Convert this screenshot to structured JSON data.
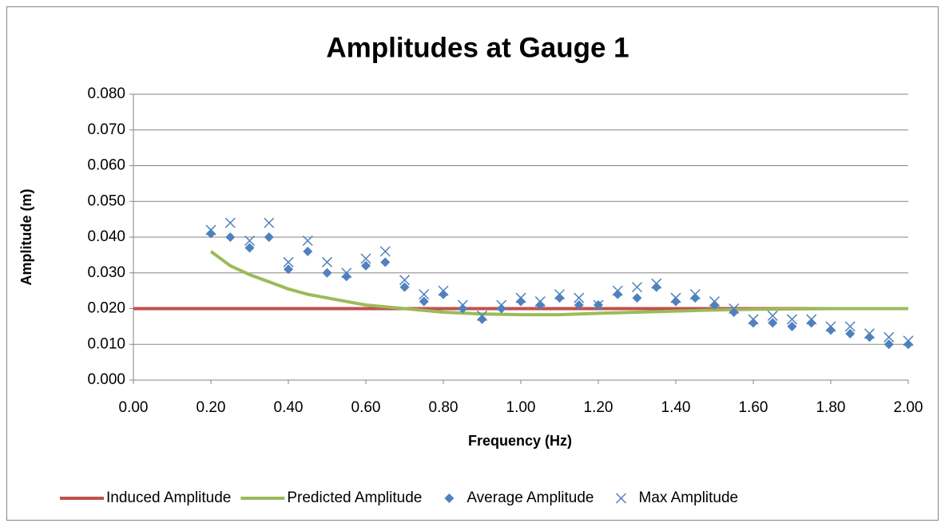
{
  "chart_data": {
    "type": "scatter",
    "title": "Amplitudes at Gauge 1",
    "x_label": "Frequency (Hz)",
    "y_label": "Amplitude (m)",
    "xlim": [
      0,
      2
    ],
    "xticks": [
      {
        "value": 0,
        "label": "0.00"
      },
      {
        "value": 0.2,
        "label": "0.20"
      },
      {
        "value": 0.4,
        "label": "0.40"
      },
      {
        "value": 0.6,
        "label": "0.60"
      },
      {
        "value": 0.8,
        "label": "0.80"
      },
      {
        "value": 1,
        "label": "1.00"
      },
      {
        "value": 1.2,
        "label": "1.20"
      },
      {
        "value": 1.4,
        "label": "1.40"
      },
      {
        "value": 1.6,
        "label": "1.60"
      },
      {
        "value": 1.8,
        "label": "1.80"
      },
      {
        "value": 2,
        "label": "2.00"
      }
    ],
    "ylim": [
      0,
      0.08
    ],
    "yticks": [
      {
        "value": 0,
        "label": "0.000"
      },
      {
        "value": 0.01,
        "label": "0.010"
      },
      {
        "value": 0.02,
        "label": "0.020"
      },
      {
        "value": 0.03,
        "label": "0.030"
      },
      {
        "value": 0.04,
        "label": "0.040"
      },
      {
        "value": 0.05,
        "label": "0.050"
      },
      {
        "value": 0.06,
        "label": "0.060"
      },
      {
        "value": 0.07,
        "label": "0.070"
      },
      {
        "value": 0.08,
        "label": "0.080"
      }
    ],
    "grid": true,
    "legend": "bottom",
    "series": [
      {
        "name": "Induced Amplitude",
        "color": "#c0504d",
        "mode": "line",
        "x": [
          0,
          2
        ],
        "values": [
          0.02,
          0.02
        ]
      },
      {
        "name": "Predicted Amplitude",
        "color": "#9bbb59",
        "mode": "line",
        "x": [
          0.2,
          0.25,
          0.3,
          0.35,
          0.4,
          0.45,
          0.5,
          0.55,
          0.6,
          0.65,
          0.7,
          0.75,
          0.8,
          0.9,
          1.0,
          1.1,
          1.2,
          1.3,
          1.4,
          1.5,
          1.6,
          1.8,
          2.0
        ],
        "values": [
          0.036,
          0.032,
          0.0295,
          0.0275,
          0.0255,
          0.024,
          0.023,
          0.022,
          0.021,
          0.0205,
          0.02,
          0.0195,
          0.019,
          0.0185,
          0.0183,
          0.0183,
          0.0187,
          0.019,
          0.0193,
          0.0196,
          0.0198,
          0.02,
          0.02
        ]
      },
      {
        "name": "Average Amplitude",
        "color": "#4f81bd",
        "mode": "marker",
        "marker": "diamond",
        "x": [
          0.2,
          0.25,
          0.3,
          0.35,
          0.4,
          0.45,
          0.5,
          0.55,
          0.6,
          0.65,
          0.7,
          0.75,
          0.8,
          0.85,
          0.9,
          0.95,
          1.0,
          1.05,
          1.1,
          1.15,
          1.2,
          1.25,
          1.3,
          1.35,
          1.4,
          1.45,
          1.5,
          1.55,
          1.6,
          1.65,
          1.7,
          1.75,
          1.8,
          1.85,
          1.9,
          1.95,
          2.0
        ],
        "values": [
          0.041,
          0.04,
          0.037,
          0.04,
          0.031,
          0.036,
          0.03,
          0.029,
          0.032,
          0.033,
          0.026,
          0.022,
          0.024,
          0.02,
          0.017,
          0.02,
          0.022,
          0.021,
          0.023,
          0.021,
          0.021,
          0.024,
          0.023,
          0.026,
          0.022,
          0.023,
          0.021,
          0.019,
          0.016,
          0.016,
          0.015,
          0.016,
          0.014,
          0.013,
          0.012,
          0.01,
          0.01
        ]
      },
      {
        "name": "Max Amplitude",
        "color": "#4f81bd",
        "mode": "marker",
        "marker": "x",
        "x": [
          0.2,
          0.25,
          0.3,
          0.35,
          0.4,
          0.45,
          0.5,
          0.55,
          0.6,
          0.65,
          0.7,
          0.75,
          0.8,
          0.85,
          0.9,
          0.95,
          1.0,
          1.05,
          1.1,
          1.15,
          1.2,
          1.25,
          1.3,
          1.35,
          1.4,
          1.45,
          1.5,
          1.55,
          1.6,
          1.65,
          1.7,
          1.75,
          1.8,
          1.85,
          1.9,
          1.95,
          2.0
        ],
        "values": [
          0.042,
          0.044,
          0.039,
          0.044,
          0.033,
          0.039,
          0.033,
          0.03,
          0.034,
          0.036,
          0.028,
          0.024,
          0.025,
          0.021,
          0.018,
          0.021,
          0.023,
          0.022,
          0.024,
          0.023,
          0.021,
          0.025,
          0.026,
          0.027,
          0.023,
          0.024,
          0.022,
          0.02,
          0.017,
          0.018,
          0.017,
          0.017,
          0.015,
          0.015,
          0.013,
          0.012,
          0.011
        ]
      }
    ]
  }
}
